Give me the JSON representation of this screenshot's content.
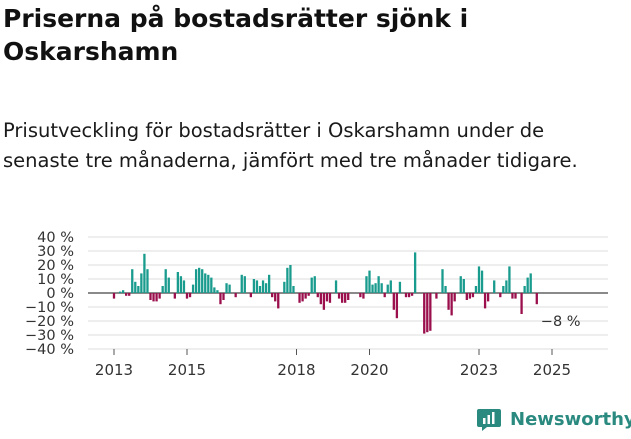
{
  "title": "Priserna på bostadsrätter sjönk i Oskarshamn",
  "subtitle": "Prisutveckling för bostadsrätter i Oskarshamn under de senaste tre månaderna, jämfört med tre månader tidigare.",
  "brand": {
    "name": "Newsworthy"
  },
  "chart_data": {
    "type": "bar",
    "unit": "%",
    "y_ticks": [
      "40 %",
      "30 %",
      "20 %",
      "10 %",
      "0 %",
      "−10 %",
      "−20 %",
      "−30 %",
      "−40 %"
    ],
    "ylim": [
      -40,
      40
    ],
    "x_ticks": [
      {
        "label": "2013",
        "year": 2013
      },
      {
        "label": "2015",
        "year": 2015
      },
      {
        "label": "2018",
        "year": 2018
      },
      {
        "label": "2020",
        "year": 2020
      },
      {
        "label": "2023",
        "year": 2023
      },
      {
        "label": "2025",
        "year": 2025
      }
    ],
    "start_year": 2013,
    "months_per_bar": 1,
    "last_value_label": "−8 %",
    "colors": {
      "positive": "#199b8e",
      "negative": "#9a0f4c"
    },
    "values": [
      -4,
      0,
      1,
      2,
      -2,
      -2,
      17,
      8,
      5,
      14,
      28,
      17,
      -5,
      -6,
      -6,
      -4,
      5,
      17,
      11,
      0,
      -4,
      15,
      12,
      9,
      -4,
      -3,
      6,
      17,
      18,
      17,
      14,
      13,
      11,
      4,
      2,
      -8,
      -5,
      7,
      6,
      0,
      -3,
      0,
      13,
      12,
      0,
      -3,
      10,
      9,
      5,
      9,
      7,
      13,
      -3,
      -6,
      -11,
      0,
      8,
      18,
      20,
      5,
      0,
      -7,
      -6,
      -4,
      -2,
      11,
      12,
      -3,
      -8,
      -12,
      -6,
      -7,
      0,
      9,
      -4,
      -7,
      -7,
      -5,
      0,
      0,
      0,
      -3,
      -4,
      12,
      16,
      6,
      7,
      12,
      7,
      -3,
      6,
      9,
      -12,
      -18,
      8,
      0,
      -3,
      -3,
      -2,
      29,
      0,
      0,
      -29,
      -28,
      -27,
      0,
      -4,
      0,
      17,
      5,
      -12,
      -16,
      -6,
      0,
      12,
      10,
      -5,
      -4,
      -3,
      5,
      19,
      16,
      -11,
      -6,
      0,
      9,
      0,
      -3,
      5,
      9,
      19,
      -4,
      -4,
      0,
      -15,
      5,
      11,
      14,
      0,
      -8
    ]
  }
}
